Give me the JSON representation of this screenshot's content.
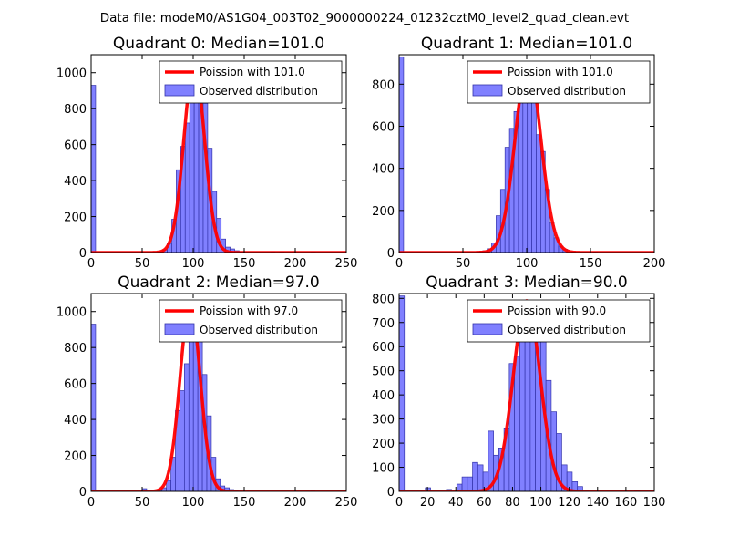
{
  "suptitle": "Data file: modeM0/AS1G04_003T02_9000000224_01232cztM0_level2_quad_clean.evt",
  "colors": {
    "hist_fill": "#8080ff",
    "hist_edge": "#3333aa",
    "poisson_line": "#ff0000",
    "axes": "#000000"
  },
  "chart_data": [
    {
      "type": "bar",
      "title": "Quadrant 0: Median=101.0",
      "median": 101.0,
      "legend": {
        "line": "Poission with 101.0",
        "hist": "Observed distribution",
        "loc": "upper-right"
      },
      "xlim": [
        0,
        250
      ],
      "ylim": [
        0,
        1100
      ],
      "xticks": [
        0,
        50,
        100,
        150,
        200,
        250
      ],
      "yticks": [
        0,
        200,
        400,
        600,
        800,
        1000
      ],
      "bin_width": 4.4,
      "bins": [
        [
          0,
          930
        ],
        [
          65.8,
          5
        ],
        [
          70.2,
          15
        ],
        [
          74.6,
          50
        ],
        [
          79.0,
          185
        ],
        [
          83.4,
          460
        ],
        [
          87.8,
          590
        ],
        [
          92.2,
          720
        ],
        [
          96.6,
          990
        ],
        [
          101.0,
          1040
        ],
        [
          105.4,
          960
        ],
        [
          109.8,
          830
        ],
        [
          114.2,
          580
        ],
        [
          118.6,
          340
        ],
        [
          123.0,
          190
        ],
        [
          127.4,
          75
        ],
        [
          131.8,
          30
        ],
        [
          136.2,
          20
        ],
        [
          140.6,
          10
        ],
        [
          145.0,
          4
        ],
        [
          175.8,
          4
        ],
        [
          184.6,
          3
        ],
        [
          215.4,
          3
        ]
      ],
      "poisson_peak": 1050
    },
    {
      "type": "bar",
      "title": "Quadrant 1: Median=101.0",
      "median": 101.0,
      "legend": {
        "line": "Poission with 101.0",
        "hist": "Observed distribution",
        "loc": "upper-right"
      },
      "xlim": [
        0,
        200
      ],
      "ylim": [
        0,
        940
      ],
      "xticks": [
        0,
        50,
        100,
        150,
        200
      ],
      "yticks": [
        0,
        200,
        400,
        600,
        800
      ],
      "bin_width": 3.5,
      "bins": [
        [
          0,
          930
        ],
        [
          62.0,
          5
        ],
        [
          65.5,
          8
        ],
        [
          69.0,
          18
        ],
        [
          72.5,
          45
        ],
        [
          76.0,
          175
        ],
        [
          79.5,
          300
        ],
        [
          83.0,
          500
        ],
        [
          86.5,
          590
        ],
        [
          90.0,
          670
        ],
        [
          93.5,
          860
        ],
        [
          97.0,
          880
        ],
        [
          100.5,
          850
        ],
        [
          104.0,
          720
        ],
        [
          107.5,
          560
        ],
        [
          111.0,
          480
        ],
        [
          114.5,
          300
        ],
        [
          118.0,
          140
        ],
        [
          121.5,
          70
        ],
        [
          125.0,
          30
        ],
        [
          128.5,
          15
        ],
        [
          135.0,
          4
        ],
        [
          152.0,
          3
        ]
      ],
      "poisson_peak": 900
    },
    {
      "type": "bar",
      "title": "Quadrant 2: Median=97.0",
      "median": 97.0,
      "legend": {
        "line": "Poission with 97.0",
        "hist": "Observed distribution",
        "loc": "upper-right"
      },
      "xlim": [
        0,
        250
      ],
      "ylim": [
        0,
        1100
      ],
      "xticks": [
        0,
        50,
        100,
        150,
        200,
        250
      ],
      "yticks": [
        0,
        200,
        400,
        600,
        800,
        1000
      ],
      "bin_width": 4.4,
      "bins": [
        [
          0,
          930
        ],
        [
          50.0,
          15
        ],
        [
          65.0,
          5
        ],
        [
          69.4,
          20
        ],
        [
          73.8,
          60
        ],
        [
          78.2,
          190
        ],
        [
          82.6,
          450
        ],
        [
          87.0,
          560
        ],
        [
          91.4,
          710
        ],
        [
          95.8,
          1040
        ],
        [
          100.2,
          960
        ],
        [
          104.6,
          900
        ],
        [
          109.0,
          650
        ],
        [
          113.4,
          420
        ],
        [
          117.8,
          190
        ],
        [
          122.2,
          70
        ],
        [
          126.6,
          30
        ],
        [
          131.0,
          20
        ],
        [
          135.4,
          10
        ],
        [
          139.8,
          4
        ],
        [
          215.0,
          3
        ]
      ],
      "poisson_peak": 1050
    },
    {
      "type": "bar",
      "title": "Quadrant 3: Median=90.0",
      "median": 90.0,
      "legend": {
        "line": "Poission with 90.0",
        "hist": "Observed distribution",
        "loc": "upper-right"
      },
      "xlim": [
        0,
        180
      ],
      "ylim": [
        0,
        820
      ],
      "xticks": [
        0,
        20,
        40,
        60,
        80,
        100,
        120,
        140,
        160,
        180
      ],
      "yticks": [
        0,
        100,
        200,
        300,
        400,
        500,
        600,
        700,
        800
      ],
      "bin_width": 3.7,
      "bins": [
        [
          0,
          810
        ],
        [
          18.5,
          15
        ],
        [
          33.3,
          8
        ],
        [
          40.7,
          30
        ],
        [
          44.4,
          60
        ],
        [
          48.1,
          60
        ],
        [
          51.8,
          120
        ],
        [
          55.5,
          110
        ],
        [
          59.2,
          80
        ],
        [
          62.9,
          250
        ],
        [
          66.6,
          150
        ],
        [
          70.3,
          180
        ],
        [
          74.0,
          260
        ],
        [
          77.7,
          530
        ],
        [
          81.4,
          560
        ],
        [
          85.1,
          780
        ],
        [
          88.8,
          720
        ],
        [
          92.5,
          790
        ],
        [
          96.2,
          620
        ],
        [
          99.9,
          720
        ],
        [
          103.6,
          460
        ],
        [
          107.3,
          330
        ],
        [
          111.0,
          240
        ],
        [
          114.7,
          110
        ],
        [
          118.4,
          80
        ],
        [
          122.1,
          40
        ],
        [
          125.8,
          20
        ],
        [
          129.5,
          6
        ],
        [
          166.0,
          3
        ]
      ],
      "poisson_peak": 790
    }
  ]
}
